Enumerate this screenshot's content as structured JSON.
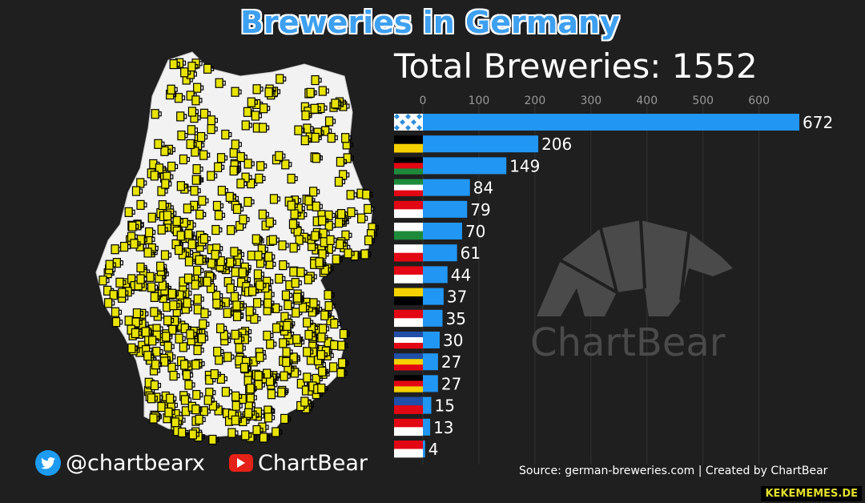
{
  "header": {
    "title": "Breweries in Germany",
    "total_label": "Total Breweries: 1552"
  },
  "social": {
    "twitter_handle": "@chartbearx",
    "youtube_channel": "ChartBear"
  },
  "watermark": {
    "brand": "ChartBear",
    "site": "KEKEMEMES.DE"
  },
  "source": "Source: german-breweries.com | Created by ChartBear",
  "colors": {
    "bar": "#2196f3",
    "title": "#3ea0f0",
    "background": "#1f1f1f"
  },
  "chart_data": {
    "type": "bar",
    "orientation": "horizontal",
    "title": "Total Breweries: 1552",
    "xlim": [
      0,
      672
    ],
    "xticks": [
      0,
      100,
      200,
      300,
      400,
      500,
      600
    ],
    "grid": true,
    "values": [
      672,
      206,
      149,
      84,
      79,
      70,
      61,
      44,
      37,
      35,
      30,
      27,
      27,
      15,
      13,
      4
    ],
    "categories": [
      "bavaria-flag",
      "baden-wuerttemberg-flag",
      "rhineland-palatinate-flag",
      "nrw-flag",
      "hesse-flag",
      "saxony-flag",
      "thuringia-flag",
      "brandenburg-flag",
      "saxony-anhalt-flag",
      "berlin-flag",
      "schleswig-holstein-flag",
      "mecklenburg-flag",
      "lower-saxony-flag",
      "saarland-flag",
      "bremen-flag",
      "hamburg-flag"
    ]
  }
}
